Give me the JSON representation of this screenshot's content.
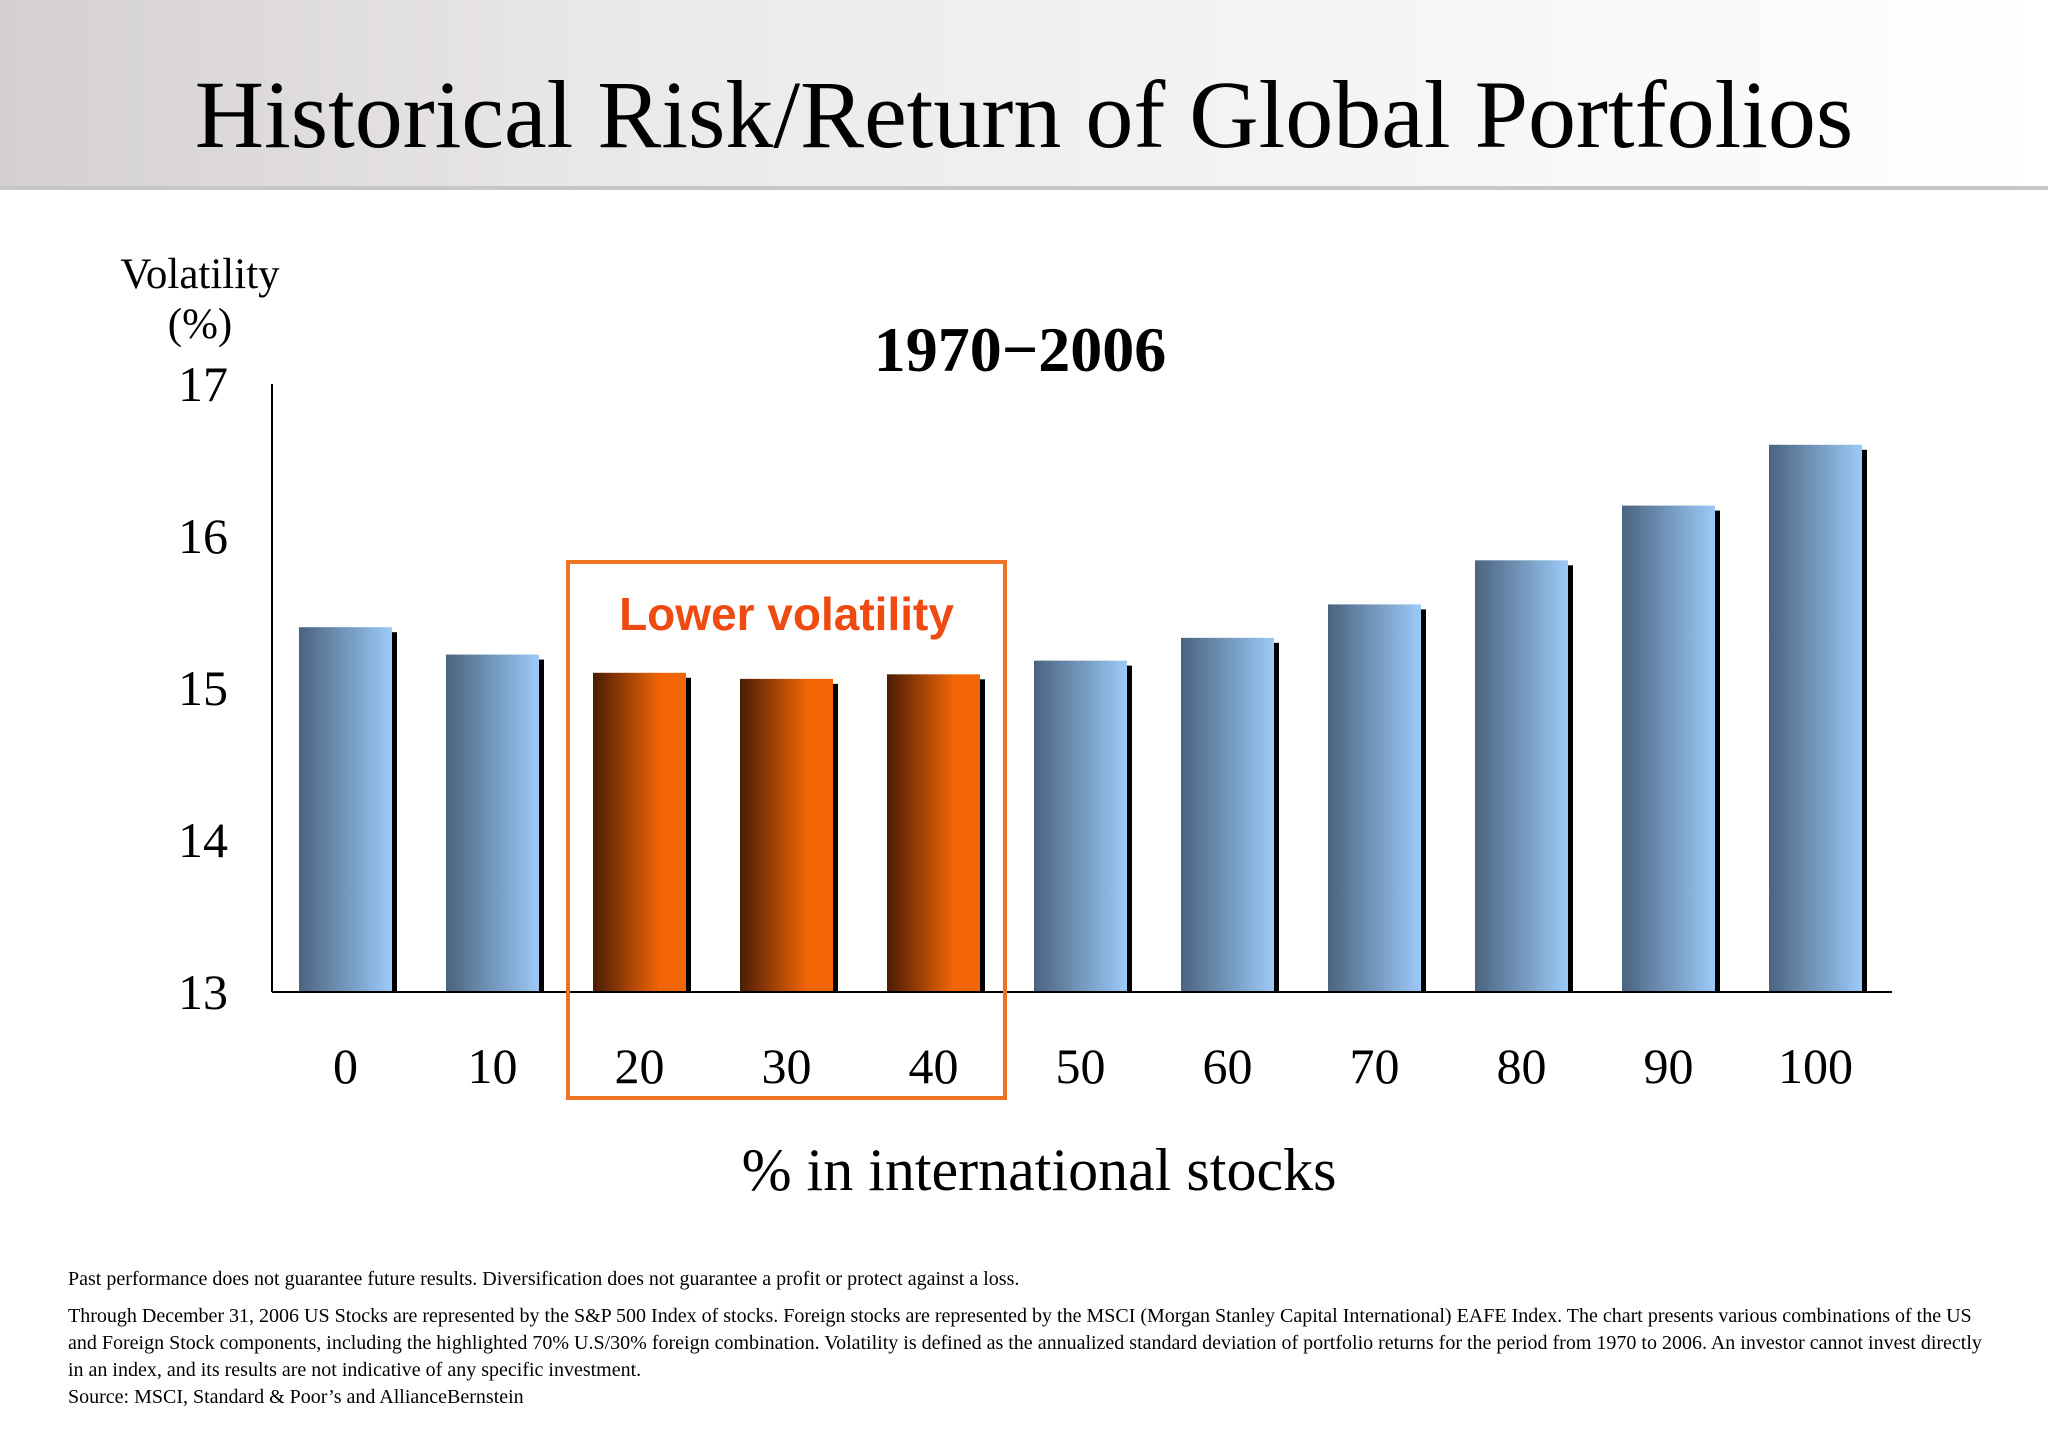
{
  "slide": {
    "title": "Historical Risk/Return of Global Portfolios"
  },
  "footnotes": {
    "disclaimer": "Past performance does not guarantee future results. Diversification does not guarantee a profit or protect against a loss.",
    "methodology": "Through December 31, 2006 US Stocks are represented by the S&P 500 Index of stocks. Foreign stocks are represented by the MSCI (Morgan Stanley Capital International) EAFE Index. The chart presents various combinations of the US and Foreign Stock components, including the highlighted 70% U.S/30% foreign combination. Volatility is defined as the annualized standard deviation of portfolio returns for the period from 1970 to 2006. An investor cannot invest directly in an index, and its results are not indicative of any specific investment.",
    "source": "Source: MSCI, Standard & Poor’s and AllianceBernstein"
  },
  "colors": {
    "normal_bar_light": "#9ccaf8",
    "normal_bar_dark": "#4a637f",
    "highlight_bar_light": "#f26506",
    "highlight_bar_dark": "#4a1c05",
    "highlight_box": "#ef7124",
    "annotation_text": "#ee4a12"
  },
  "chart_data": {
    "type": "bar",
    "subtitle": "1970−2006",
    "ylabel_line1": "Volatility",
    "ylabel_line2": "(%)",
    "xlabel": "% in international stocks",
    "categories": [
      "0",
      "10",
      "20",
      "30",
      "40",
      "50",
      "60",
      "70",
      "80",
      "90",
      "100"
    ],
    "values": [
      15.4,
      15.22,
      15.1,
      15.06,
      15.09,
      15.18,
      15.33,
      15.55,
      15.84,
      16.2,
      16.6
    ],
    "highlighted_categories": [
      "20",
      "30",
      "40"
    ],
    "annotation": "Lower volatility",
    "ylim": [
      13,
      17
    ],
    "yticks": [
      13,
      14,
      15,
      16,
      17
    ],
    "grid": false,
    "legend": "none"
  }
}
